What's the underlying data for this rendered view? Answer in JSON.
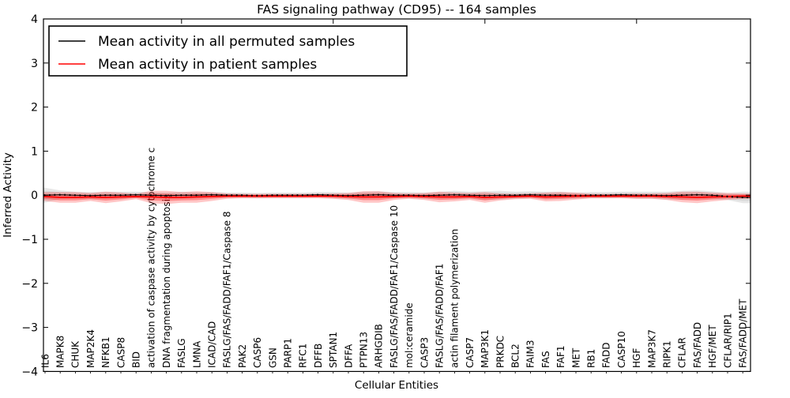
{
  "chart_data": {
    "type": "line",
    "title": "FAS signaling pathway (CD95) -- 164 samples",
    "xlabel": "Cellular Entities",
    "ylabel": "Inferred Activity",
    "ylim": [
      -4,
      4
    ],
    "y_ticks": [
      4,
      3,
      2,
      1,
      0,
      -1,
      -2,
      -3,
      -4
    ],
    "top_tick_category_indexes": [
      9,
      19,
      29,
      39
    ],
    "grid": false,
    "legend_position": "upper left",
    "background_color": "#ffffff",
    "categories": [
      "IL6",
      "MAPK8",
      "CHUK",
      "MAP2K4",
      "NFKB1",
      "CASP8",
      "BID",
      "activation of caspase activity by cytochrome c",
      "DNA fragmentation during apoptosis",
      "FASLG",
      "LMNA",
      "ICAD/CAD",
      "FASLG/FAS/FADD/FAF1/Caspase 8",
      "PAK2",
      "CASP6",
      "GSN",
      "PARP1",
      "RFC1",
      "DFFB",
      "SPTAN1",
      "DFFA",
      "PTPN13",
      "ARHGDIB",
      "FASLG/FAS/FADD/FAF1/Caspase 10",
      "mol:ceramide",
      "CASP3",
      "FASLG/FAS/FADD/FAF1",
      "actin filament polymerization",
      "CASP7",
      "MAP3K1",
      "PRKDC",
      "BCL2",
      "FAIM3",
      "FAS",
      "FAF1",
      "MET",
      "RB1",
      "FADD",
      "CASP10",
      "HGF",
      "MAP3K7",
      "RIPK1",
      "CFLAR",
      "FAS/FADD",
      "HGF/MET",
      "CFLAR/RIP1",
      "FAS/FADD/MET"
    ],
    "series": [
      {
        "name": "Mean activity in all permuted samples",
        "color": "#000000",
        "marker": "dot",
        "values": [
          0.0,
          0.01,
          0.0,
          -0.01,
          0.0,
          0.0,
          0.01,
          0.0,
          -0.01,
          0.0,
          0.0,
          0.01,
          0.0,
          0.0,
          -0.01,
          0.0,
          0.0,
          0.0,
          0.01,
          0.0,
          -0.01,
          0.0,
          0.01,
          0.0,
          0.0,
          -0.01,
          0.0,
          0.01,
          0.0,
          -0.01,
          0.0,
          0.0,
          0.01,
          0.0,
          0.0,
          -0.01,
          0.0,
          0.0,
          0.01,
          0.0,
          0.0,
          -0.01,
          0.0,
          0.01,
          0.0,
          -0.03,
          -0.05
        ],
        "band_half_widths": [
          0.17,
          0.1,
          0.08,
          0.08,
          0.08,
          0.08,
          0.07,
          0.07,
          0.07,
          0.08,
          0.07,
          0.06,
          0.06,
          0.06,
          0.06,
          0.06,
          0.06,
          0.06,
          0.06,
          0.07,
          0.07,
          0.08,
          0.08,
          0.07,
          0.07,
          0.07,
          0.08,
          0.09,
          0.08,
          0.1,
          0.1,
          0.08,
          0.08,
          0.08,
          0.08,
          0.07,
          0.07,
          0.07,
          0.07,
          0.08,
          0.08,
          0.09,
          0.1,
          0.1,
          0.09,
          0.08,
          0.13
        ],
        "band_color": "#888888"
      },
      {
        "name": "Mean activity in patient samples",
        "color": "#ff0000",
        "marker": "none",
        "values": [
          -0.03,
          -0.05,
          -0.05,
          -0.04,
          -0.05,
          -0.04,
          -0.03,
          -0.04,
          -0.05,
          -0.05,
          -0.04,
          -0.03,
          -0.02,
          -0.02,
          -0.02,
          -0.02,
          -0.02,
          -0.02,
          -0.02,
          -0.02,
          -0.03,
          -0.04,
          -0.04,
          -0.03,
          -0.02,
          -0.03,
          -0.04,
          -0.04,
          -0.03,
          -0.05,
          -0.04,
          -0.03,
          -0.02,
          -0.04,
          -0.03,
          -0.02,
          -0.02,
          -0.02,
          -0.02,
          -0.02,
          -0.02,
          -0.03,
          -0.04,
          -0.05,
          -0.04,
          -0.03,
          -0.02
        ],
        "band_half_widths": [
          0.1,
          0.12,
          0.12,
          0.09,
          0.13,
          0.1,
          0.06,
          0.14,
          0.15,
          0.12,
          0.13,
          0.1,
          0.06,
          0.05,
          0.05,
          0.05,
          0.05,
          0.05,
          0.05,
          0.06,
          0.08,
          0.13,
          0.13,
          0.08,
          0.06,
          0.08,
          0.12,
          0.1,
          0.08,
          0.12,
          0.08,
          0.06,
          0.06,
          0.1,
          0.1,
          0.08,
          0.05,
          0.05,
          0.05,
          0.06,
          0.06,
          0.08,
          0.12,
          0.13,
          0.1,
          0.08,
          0.06
        ],
        "band_color": "#ff0000"
      }
    ]
  }
}
